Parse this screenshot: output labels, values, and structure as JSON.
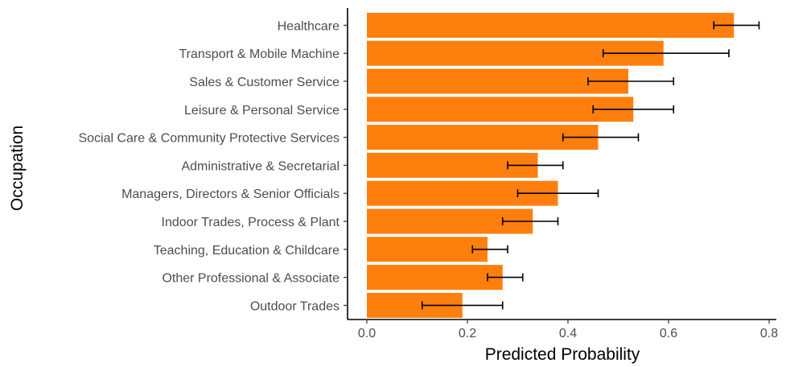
{
  "chart_data": {
    "type": "bar",
    "orientation": "horizontal",
    "title": "",
    "xlabel": "Predicted Probability",
    "ylabel": "Occupation",
    "xlim": [
      0,
      0.8
    ],
    "xticks": [
      0,
      0.2,
      0.4,
      0.6,
      0.8
    ],
    "xtick_labels": [
      "0.0",
      "0.2",
      "0.4",
      "0.6",
      "0.8"
    ],
    "grid": false,
    "bar_color": "#FF7F0E",
    "error_bar_color": "#000000",
    "categories": [
      "Healthcare",
      "Transport & Mobile Machine",
      "Sales & Customer Service",
      "Leisure & Personal Service",
      "Social Care & Community Protective Services",
      "Administrative & Secretarial",
      "Managers, Directors & Senior Officials",
      "Indoor Trades, Process & Plant",
      "Teaching, Education & Childcare",
      "Other Professional & Associate",
      "Outdoor Trades"
    ],
    "values": [
      0.73,
      0.59,
      0.52,
      0.53,
      0.46,
      0.34,
      0.38,
      0.33,
      0.24,
      0.27,
      0.19
    ],
    "error_low": [
      0.69,
      0.47,
      0.44,
      0.45,
      0.39,
      0.28,
      0.3,
      0.27,
      0.21,
      0.24,
      0.11
    ],
    "error_high": [
      0.78,
      0.72,
      0.61,
      0.61,
      0.54,
      0.39,
      0.46,
      0.38,
      0.28,
      0.31,
      0.27
    ]
  }
}
